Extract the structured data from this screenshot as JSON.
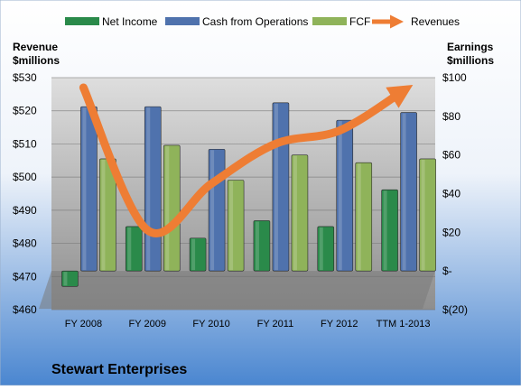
{
  "colors": {
    "net_income": "#2a8a4a",
    "cash_from_operations": "#4f72ad",
    "fcf": "#8fb35a",
    "revenues": "#ee7d34",
    "background_top": "#ffffff",
    "background_bottom": "#4a86d0"
  },
  "chart_data": {
    "type": "bar",
    "title": "Stewart Enterprises",
    "categories": [
      "FY 2008",
      "FY 2009",
      "FY 2010",
      "FY 2011",
      "FY 2012",
      "TTM 1-2013"
    ],
    "left_axis": {
      "label_line1": "Revenue",
      "label_line2": "$millions",
      "range": [
        460,
        530
      ],
      "ticks": [
        "$460",
        "$470",
        "$480",
        "$490",
        "$500",
        "$510",
        "$520",
        "$530"
      ]
    },
    "right_axis": {
      "label_line1": "Earnings",
      "label_line2": "$millions",
      "range": [
        -20,
        100
      ],
      "ticks": [
        "$(20)",
        "$-",
        "$20",
        "$40",
        "$60",
        "$80",
        "$100"
      ]
    },
    "series": [
      {
        "name": "Net Income",
        "type": "bar",
        "axis": "right",
        "values": [
          -8,
          23,
          17,
          26,
          23,
          42
        ]
      },
      {
        "name": "Cash from Operations",
        "type": "bar",
        "axis": "right",
        "values": [
          85,
          85,
          63,
          87,
          78,
          82
        ]
      },
      {
        "name": "FCF",
        "type": "bar",
        "axis": "right",
        "values": [
          58,
          65,
          47,
          60,
          56,
          58
        ]
      },
      {
        "name": "Revenues",
        "type": "line",
        "axis": "left",
        "values": [
          527,
          484,
          498,
          510,
          514,
          526
        ]
      }
    ],
    "legend": "top",
    "grid": true
  }
}
